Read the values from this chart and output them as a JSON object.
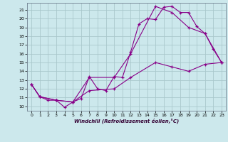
{
  "title": "",
  "xlabel": "Windchill (Refroidissement éolien,°C)",
  "background_color": "#cce8ec",
  "grid_color": "#aac8cc",
  "line_color": "#880088",
  "xlim": [
    -0.5,
    23.5
  ],
  "ylim": [
    9.5,
    21.8
  ],
  "xticks": [
    0,
    1,
    2,
    3,
    4,
    5,
    6,
    7,
    8,
    9,
    10,
    11,
    12,
    13,
    14,
    15,
    16,
    17,
    18,
    19,
    20,
    21,
    22,
    23
  ],
  "yticks": [
    10,
    11,
    12,
    13,
    14,
    15,
    16,
    17,
    18,
    19,
    20,
    21
  ],
  "line1_x": [
    0,
    1,
    2,
    3,
    4,
    5,
    6,
    7,
    8,
    9,
    10,
    11,
    12,
    13,
    14,
    15,
    16,
    17,
    18,
    19,
    20,
    21,
    22,
    23
  ],
  "line1_y": [
    12.5,
    11.1,
    10.7,
    10.7,
    9.9,
    10.5,
    10.9,
    13.4,
    12.0,
    11.8,
    13.4,
    13.3,
    16.2,
    19.4,
    20.0,
    19.9,
    21.3,
    21.4,
    20.7,
    20.7,
    19.1,
    18.3,
    16.5,
    15.0
  ],
  "line2_x": [
    0,
    1,
    3,
    5,
    7,
    10,
    12,
    15,
    17,
    19,
    21,
    23
  ],
  "line2_y": [
    12.5,
    11.1,
    10.7,
    10.5,
    13.3,
    13.3,
    16.0,
    21.4,
    20.7,
    19.0,
    18.3,
    15.0
  ],
  "line3_x": [
    0,
    1,
    3,
    5,
    7,
    10,
    12,
    15,
    17,
    19,
    21,
    23
  ],
  "line3_y": [
    12.5,
    11.1,
    10.7,
    10.5,
    11.8,
    12.0,
    13.3,
    15.0,
    14.5,
    14.0,
    14.8,
    15.0
  ]
}
